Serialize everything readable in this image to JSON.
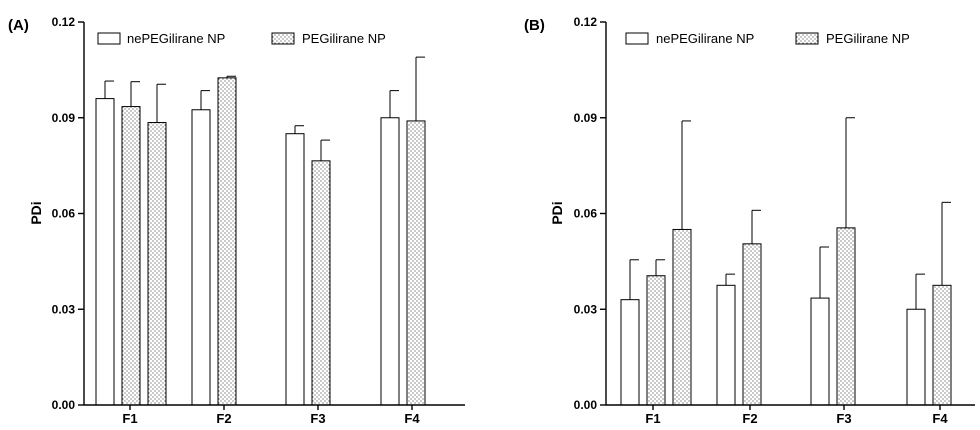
{
  "chart_data": [
    {
      "type": "bar",
      "panel_label": "(A)",
      "ylabel": "PDi",
      "xlabel": "",
      "ylim": [
        0,
        0.12
      ],
      "yticks": [
        "0.00",
        "0.03",
        "0.06",
        "0.09",
        "0.12"
      ],
      "categories": [
        "F1",
        "F2",
        "F3",
        "F4"
      ],
      "legend": {
        "position": "top-left",
        "entries": [
          "nePEGilirane NP",
          "PEGilirane NP"
        ]
      },
      "fills": {
        "nePEGilirane NP": "#ffffff",
        "PEGilirane NP": "dotted"
      },
      "bars": [
        {
          "category": "F1",
          "series": "nePEGilirane NP",
          "value": 0.096,
          "error": 0.0055
        },
        {
          "category": "F1",
          "series": "PEGilirane NP",
          "value": 0.0935,
          "error": 0.0078
        },
        {
          "category": "F1",
          "series": "PEGilirane NP",
          "value": 0.0885,
          "error": 0.012
        },
        {
          "category": "F2",
          "series": "nePEGilirane NP",
          "value": 0.0925,
          "error": 0.006
        },
        {
          "category": "F2",
          "series": "PEGilirane NP",
          "value": 0.1025,
          "error": 0.0005
        },
        {
          "category": "F3",
          "series": "nePEGilirane NP",
          "value": 0.085,
          "error": 0.0025
        },
        {
          "category": "F3",
          "series": "PEGilirane NP",
          "value": 0.0765,
          "error": 0.0065
        },
        {
          "category": "F4",
          "series": "nePEGilirane NP",
          "value": 0.09,
          "error": 0.0085
        },
        {
          "category": "F4",
          "series": "PEGilirane NP",
          "value": 0.089,
          "error": 0.02
        }
      ]
    },
    {
      "type": "bar",
      "panel_label": "(B)",
      "ylabel": "PDi",
      "xlabel": "",
      "ylim": [
        0,
        0.12
      ],
      "yticks": [
        "0.00",
        "0.03",
        "0.06",
        "0.09",
        "0.12"
      ],
      "categories": [
        "F1",
        "F2",
        "F3",
        "F4"
      ],
      "legend": {
        "position": "top-left",
        "entries": [
          "nePEGilirane NP",
          "PEGilirane NP"
        ]
      },
      "fills": {
        "nePEGilirane NP": "#ffffff",
        "PEGilirane NP": "dotted"
      },
      "bars": [
        {
          "category": "F1",
          "series": "nePEGilirane NP",
          "value": 0.033,
          "error": 0.0125
        },
        {
          "category": "F1",
          "series": "PEGilirane NP",
          "value": 0.0405,
          "error": 0.005
        },
        {
          "category": "F1",
          "series": "PEGilirane NP",
          "value": 0.055,
          "error": 0.034
        },
        {
          "category": "F2",
          "series": "nePEGilirane NP",
          "value": 0.0375,
          "error": 0.0035
        },
        {
          "category": "F2",
          "series": "PEGilirane NP",
          "value": 0.0505,
          "error": 0.0105
        },
        {
          "category": "F3",
          "series": "nePEGilirane NP",
          "value": 0.0335,
          "error": 0.016
        },
        {
          "category": "F3",
          "series": "PEGilirane NP",
          "value": 0.0555,
          "error": 0.0345
        },
        {
          "category": "F4",
          "series": "nePEGilirane NP",
          "value": 0.03,
          "error": 0.011
        },
        {
          "category": "F4",
          "series": "PEGilirane NP",
          "value": 0.0375,
          "error": 0.026
        }
      ]
    }
  ]
}
